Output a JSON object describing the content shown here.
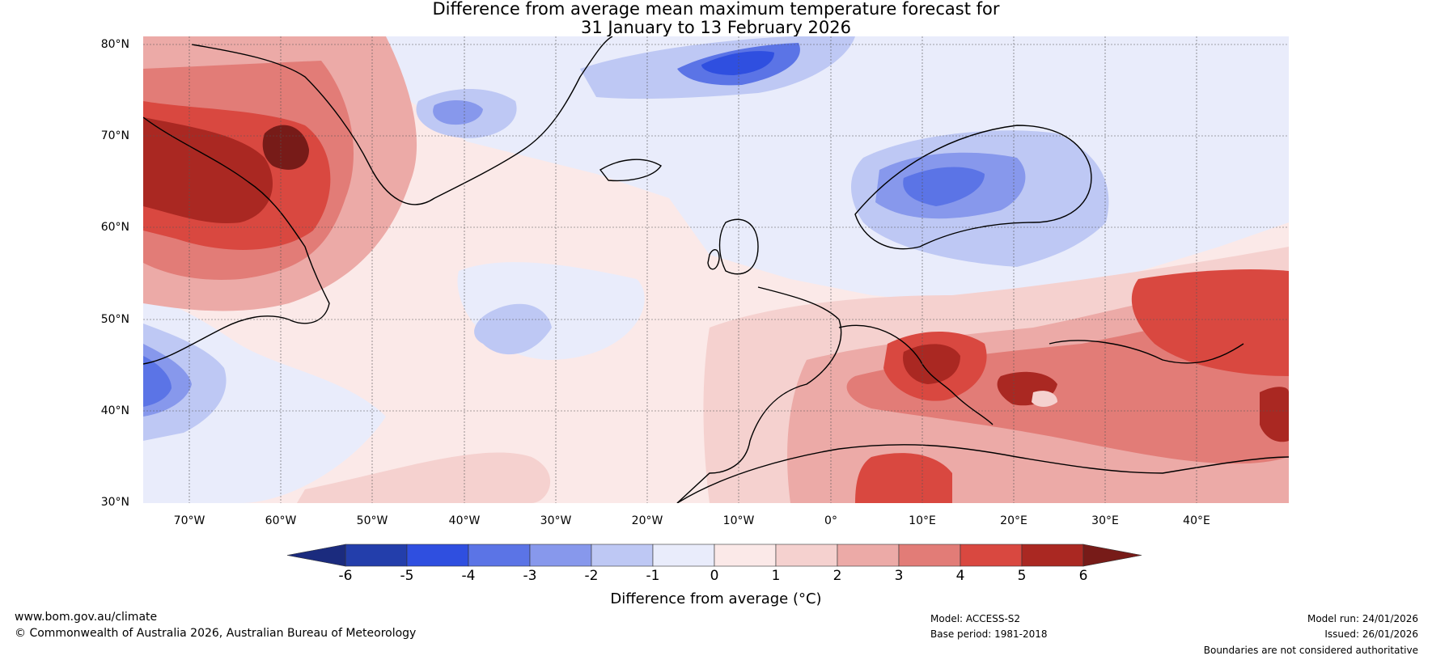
{
  "title": {
    "line1": "Difference from average mean maximum temperature forecast for",
    "line2": "31 January to 13 February 2026"
  },
  "map": {
    "lat_labels": [
      "80°N",
      "70°N",
      "60°N",
      "50°N",
      "40°N",
      "30°N"
    ],
    "lon_labels": [
      "70°W",
      "60°W",
      "50°W",
      "40°W",
      "30°W",
      "20°W",
      "10°W",
      "0°",
      "10°E",
      "20°E",
      "30°E",
      "40°E"
    ],
    "lat_range": [
      30,
      80
    ],
    "lon_range": [
      -75,
      50
    ]
  },
  "colorbar": {
    "ticks": [
      "-6",
      "-5",
      "-4",
      "-3",
      "-2",
      "-1",
      "0",
      "1",
      "2",
      "3",
      "4",
      "5",
      "6"
    ],
    "colors": [
      "#233eab",
      "#2f4fe0",
      "#5b74e6",
      "#8798ec",
      "#bec8f4",
      "#e9ecfb",
      "#fbe9e8",
      "#f5d1cf",
      "#ecaaa7",
      "#e27c77",
      "#d94840",
      "#aa2822"
    ],
    "under_color": "#1b2b7e",
    "over_color": "#771b18",
    "label": "Difference from average (°C)"
  },
  "footer": {
    "website": "www.bom.gov.au/climate",
    "copyright": "© Commonwealth of Australia 2026, Australian Bureau of Meteorology",
    "model": "Model: ACCESS-S2",
    "base_period": "Base period: 1981-2018",
    "model_run": "Model run: 24/01/2026",
    "issued": "Issued: 26/01/2026",
    "disclaimer": "Boundaries are not considered authoritative"
  }
}
